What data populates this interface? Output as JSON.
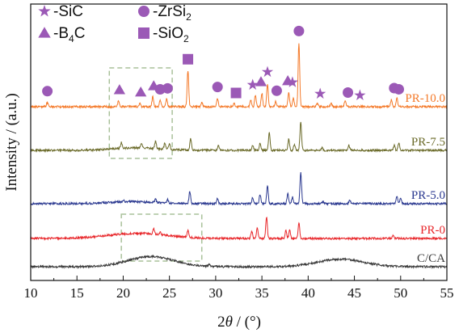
{
  "chart_data": {
    "type": "line",
    "title": "",
    "xlabel": "2θ / (°)",
    "xlabel_parts": {
      "var": "2",
      "theta": "θ",
      "rest": " / (°)"
    },
    "ylabel": "Intensity / (a.u.)",
    "xlim": [
      10,
      55
    ],
    "x_ticks": [
      10,
      15,
      20,
      25,
      30,
      35,
      40,
      45,
      50,
      55
    ],
    "grid": false,
    "y_tick_labels": false,
    "legend_position": "top-left",
    "legend": [
      {
        "marker": "star",
        "label": "-SiC",
        "label_parts": {
          "main": "-SiC",
          "sub": ""
        }
      },
      {
        "marker": "circle",
        "label": "-ZrSi2",
        "label_parts": {
          "main": "-ZrSi",
          "sub": "2"
        }
      },
      {
        "marker": "triangle",
        "label": "-B4C",
        "label_parts": {
          "main": "-B",
          "sub": "4",
          "tail": "C"
        }
      },
      {
        "marker": "square",
        "label": "-SiO2",
        "label_parts": {
          "main": "-SiO",
          "sub": "2"
        }
      }
    ],
    "marker_color": "#9b59b6",
    "series": [
      {
        "name": "PR-10.0",
        "color": "#f47a2a",
        "offset": 4,
        "peaks": [
          [
            11.8,
            0.25
          ],
          [
            19.5,
            0.35
          ],
          [
            21.8,
            0.2
          ],
          [
            23.2,
            0.6
          ],
          [
            24.0,
            0.35
          ],
          [
            24.7,
            0.45
          ],
          [
            27.0,
            2.15
          ],
          [
            28.5,
            0.25
          ],
          [
            30.2,
            0.5
          ],
          [
            32.0,
            0.2
          ],
          [
            33.8,
            0.4
          ],
          [
            34.3,
            0.7
          ],
          [
            35.0,
            0.8
          ],
          [
            35.6,
            1.35
          ],
          [
            36.5,
            0.3
          ],
          [
            37.9,
            0.9
          ],
          [
            38.4,
            0.5
          ],
          [
            39.0,
            3.8
          ],
          [
            41.0,
            0.2
          ],
          [
            42.5,
            0.2
          ],
          [
            44.0,
            0.35
          ],
          [
            49.0,
            0.4
          ],
          [
            49.6,
            0.5
          ]
        ],
        "hump": []
      },
      {
        "name": "PR-7.5",
        "color": "#6b6b2a",
        "offset": 3,
        "peaks": [
          [
            19.8,
            0.35
          ],
          [
            22.0,
            0.3
          ],
          [
            23.5,
            0.45
          ],
          [
            24.5,
            0.35
          ],
          [
            25.0,
            0.3
          ],
          [
            27.3,
            0.7
          ],
          [
            30.3,
            0.3
          ],
          [
            34.0,
            0.3
          ],
          [
            34.8,
            0.45
          ],
          [
            35.8,
            1.05
          ],
          [
            37.9,
            0.65
          ],
          [
            38.5,
            0.35
          ],
          [
            39.2,
            1.7
          ],
          [
            41.5,
            0.15
          ],
          [
            44.4,
            0.3
          ],
          [
            49.3,
            0.3
          ],
          [
            49.8,
            0.45
          ]
        ],
        "hump": [
          [
            21.5,
            0.15,
            3.5
          ]
        ]
      },
      {
        "name": "PR-5.0",
        "color": "#2b3990",
        "offset": 2,
        "peaks": [
          [
            20.0,
            0.1
          ],
          [
            23.5,
            0.2
          ],
          [
            24.8,
            0.2
          ],
          [
            27.2,
            0.75
          ],
          [
            30.2,
            0.3
          ],
          [
            34.0,
            0.35
          ],
          [
            34.8,
            0.55
          ],
          [
            35.6,
            1.1
          ],
          [
            37.8,
            0.6
          ],
          [
            38.3,
            0.4
          ],
          [
            39.2,
            1.9
          ],
          [
            41.6,
            0.15
          ],
          [
            44.5,
            0.25
          ],
          [
            49.6,
            0.45
          ],
          [
            50.0,
            0.35
          ]
        ],
        "hump": [
          [
            21.0,
            0.12,
            3.5
          ]
        ]
      },
      {
        "name": "PR-0",
        "color": "#e8262a",
        "offset": 1,
        "peaks": [
          [
            23.3,
            0.35
          ],
          [
            24.0,
            0.15
          ],
          [
            27.0,
            0.45
          ],
          [
            33.9,
            0.4
          ],
          [
            34.5,
            0.6
          ],
          [
            35.5,
            1.3
          ],
          [
            37.6,
            0.5
          ],
          [
            38.0,
            0.5
          ],
          [
            39.0,
            0.95
          ],
          [
            49.2,
            0.2
          ]
        ],
        "hump": [
          [
            21.5,
            0.3,
            4.5
          ]
        ]
      },
      {
        "name": "C/CA",
        "color": "#3a3a3a",
        "offset": 0,
        "peaks": [
          [
            29.3,
            0.1
          ]
        ],
        "hump": [
          [
            23.0,
            0.6,
            3.5
          ],
          [
            43.5,
            0.45,
            3.5
          ]
        ]
      }
    ],
    "annotations": [
      {
        "type": "dashed-box",
        "x_range": [
          18.5,
          25.3
        ],
        "series_range": [
          "PR-7.5",
          "PR-10.0"
        ]
      },
      {
        "type": "dashed-box",
        "x_range": [
          19.8,
          28.5
        ],
        "series_range": [
          "PR-0",
          "PR-0"
        ]
      }
    ],
    "phase_markers": [
      {
        "marker": "circle",
        "x": 11.8
      },
      {
        "marker": "triangle",
        "x": 19.6
      },
      {
        "marker": "triangle",
        "x": 21.9
      },
      {
        "marker": "triangle",
        "x": 23.3
      },
      {
        "marker": "circle",
        "x": 24.0
      },
      {
        "marker": "circle",
        "x": 24.8
      },
      {
        "marker": "square",
        "x": 27.0
      },
      {
        "marker": "circle",
        "x": 30.2
      },
      {
        "marker": "square",
        "x": 32.2
      },
      {
        "marker": "star",
        "x": 34.0
      },
      {
        "marker": "triangle",
        "x": 34.9
      },
      {
        "marker": "star",
        "x": 35.6
      },
      {
        "marker": "circle",
        "x": 36.6
      },
      {
        "marker": "triangle",
        "x": 37.8
      },
      {
        "marker": "star",
        "x": 38.3
      },
      {
        "marker": "circle",
        "x": 39.0
      },
      {
        "marker": "star",
        "x": 41.3
      },
      {
        "marker": "circle",
        "x": 44.3
      },
      {
        "marker": "star",
        "x": 45.6
      },
      {
        "marker": "circle",
        "x": 49.3
      },
      {
        "marker": "circle",
        "x": 49.8
      }
    ]
  }
}
